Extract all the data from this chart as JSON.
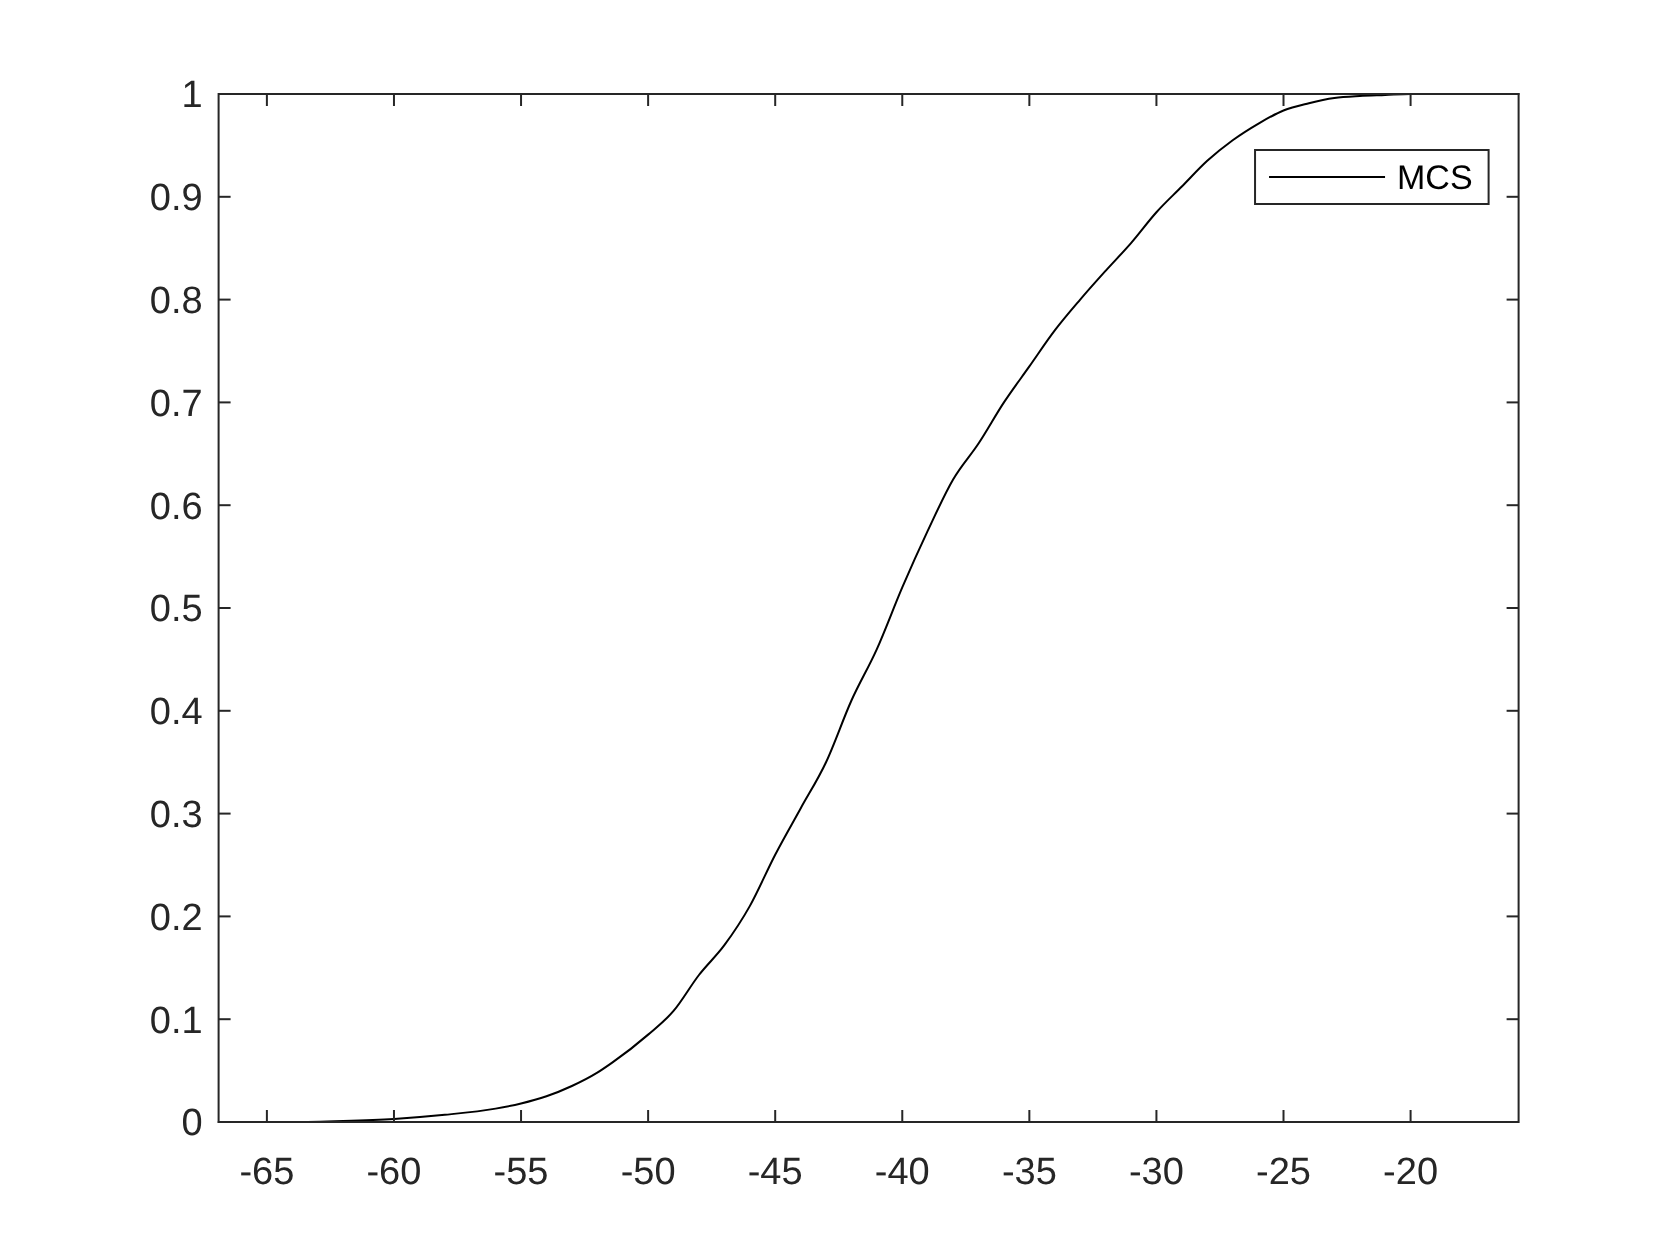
{
  "chart_data": {
    "type": "line",
    "x": [
      -66.9,
      -64,
      -62,
      -60,
      -58,
      -56,
      -55,
      -54,
      -53,
      -52,
      -51.4,
      -50,
      -49,
      -48,
      -47,
      -46,
      -45,
      -44,
      -43,
      -42,
      -41,
      -40,
      -39,
      -38,
      -37,
      -36,
      -35,
      -34,
      -33,
      -32,
      -31,
      -30,
      -29,
      -28,
      -27,
      -26,
      -25,
      -24,
      -23,
      -22,
      -21,
      -20,
      -18,
      -15.75
    ],
    "series": [
      {
        "name": "MCS",
        "color": "#000000",
        "values": [
          0,
          0,
          0.001,
          0.003,
          0.007,
          0.013,
          0.018,
          0.025,
          0.035,
          0.048,
          0.058,
          0.085,
          0.108,
          0.143,
          0.172,
          0.21,
          0.26,
          0.305,
          0.35,
          0.41,
          0.46,
          0.52,
          0.575,
          0.625,
          0.66,
          0.7,
          0.735,
          0.77,
          0.8,
          0.828,
          0.855,
          0.885,
          0.91,
          0.935,
          0.955,
          0.971,
          0.984,
          0.991,
          0.996,
          0.998,
          0.999,
          1,
          1,
          1
        ]
      }
    ],
    "xlim": [
      -66.9,
      -15.75
    ],
    "xticks": [
      -65,
      -60,
      -55,
      -50,
      -45,
      -40,
      -35,
      -30,
      -25,
      -20
    ],
    "ylim": [
      0,
      1
    ],
    "yticks": [
      0,
      0.1,
      0.2,
      0.3,
      0.4,
      0.5,
      0.6,
      0.7,
      0.8,
      0.9,
      1
    ],
    "legend": "top right",
    "line_style": "solid"
  }
}
